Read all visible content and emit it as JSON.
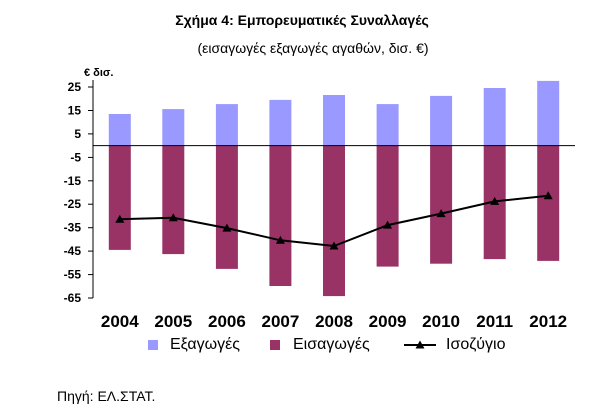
{
  "chart_data": {
    "type": "bar",
    "title": "Σχήμα 4: Εμπορευματικές Συναλλαγές",
    "subtitle": "(εισαγωγές εξαγωγές αγαθών, δισ. €)",
    "ylabel": "€ δισ.",
    "categories": [
      "2004",
      "2005",
      "2006",
      "2007",
      "2008",
      "2009",
      "2010",
      "2011",
      "2012"
    ],
    "ylim": [
      -65,
      28
    ],
    "yticks": [
      25,
      15,
      5,
      -5,
      -15,
      -25,
      -35,
      -45,
      -55,
      -65
    ],
    "grid": false,
    "legend_position": "bottom",
    "series": [
      {
        "name": "Εξαγωγές",
        "type": "bar",
        "color": "#9999FF",
        "values": [
          13.5,
          15.6,
          17.7,
          19.5,
          21.6,
          17.7,
          21.2,
          24.6,
          27.6
        ]
      },
      {
        "name": "Εισαγωγές",
        "type": "bar",
        "color": "#993366",
        "values": [
          -44.5,
          -46.3,
          -52.6,
          -59.9,
          -64.2,
          -51.6,
          -50.4,
          -48.4,
          -49.2
        ]
      },
      {
        "name": "Ισοζύγιο",
        "type": "line",
        "color": "#000000",
        "marker": "triangle",
        "values": [
          -31.4,
          -30.8,
          -35.2,
          -40.4,
          -42.8,
          -33.9,
          -29.0,
          -23.8,
          -21.4
        ]
      }
    ]
  },
  "source": "Πηγή: ΕΛ.ΣΤΑΤ."
}
